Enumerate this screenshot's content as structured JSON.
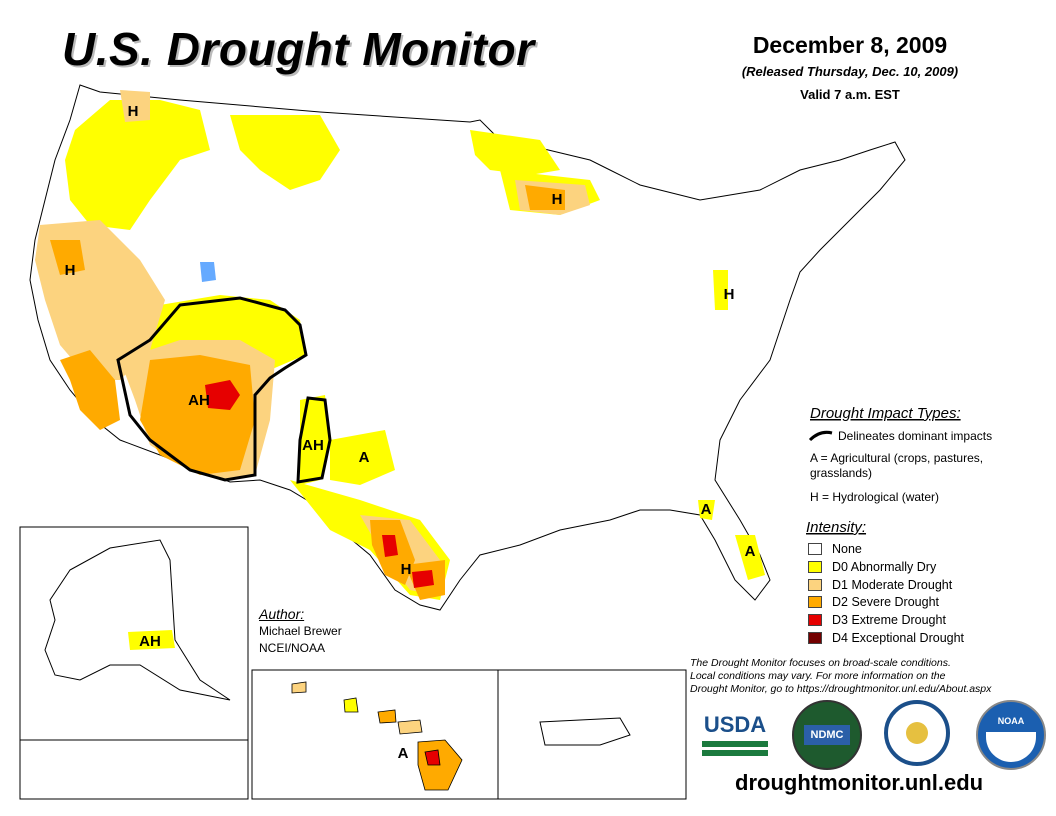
{
  "header": {
    "title": "U.S. Drought Monitor",
    "date": "December 8, 2009",
    "released": "(Released Thursday, Dec. 10, 2009)",
    "valid": "Valid 7 a.m. EST"
  },
  "impact_types": {
    "heading": "Drought Impact Types:",
    "delineates": "Delineates dominant impacts",
    "agricultural": "A = Agricultural (crops, pastures,",
    "agricultural2": "grasslands)",
    "hydrological": "H = Hydrological (water)"
  },
  "intensity": {
    "heading": "Intensity:",
    "levels": [
      {
        "label": "None",
        "color": "#ffffff"
      },
      {
        "label": "D0 Abnormally Dry",
        "color": "#ffff00"
      },
      {
        "label": "D1 Moderate Drought",
        "color": "#fcd37f"
      },
      {
        "label": "D2 Severe Drought",
        "color": "#ffaa00"
      },
      {
        "label": "D3 Extreme Drought",
        "color": "#e60000"
      },
      {
        "label": "D4 Exceptional Drought",
        "color": "#730000"
      }
    ]
  },
  "author": {
    "heading": "Author:",
    "name": "Michael Brewer",
    "org": "NCEI/NOAA"
  },
  "note": {
    "line1": "The Drought Monitor focuses on broad-scale conditions.",
    "line2": "Local conditions may vary. For more information on the",
    "line3": "Drought Monitor, go to https://droughtmonitor.unl.edu/About.aspx"
  },
  "logos": {
    "usda": "USDA",
    "ndmc": "NDMC",
    "noaa": "NOAA"
  },
  "url": "droughtmonitor.unl.edu",
  "map_labels": {
    "h_wa": "H",
    "h_nv": "H",
    "ah_az": "AH",
    "ah_nm": "AH",
    "a_tx": "A",
    "h_tx": "H",
    "h_mi": "H",
    "h_pa": "H",
    "a_ga": "A",
    "a_fl": "A",
    "ah_ak": "AH",
    "a_hi": "A"
  }
}
